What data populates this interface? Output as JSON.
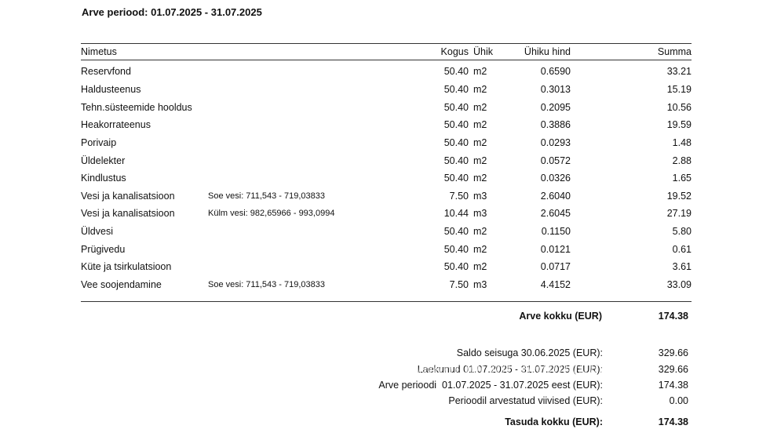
{
  "page": {
    "title": "Arve periood: 01.07.2025 - 31.07.2025"
  },
  "table": {
    "columns": {
      "name": "Nimetus",
      "qty": "Kogus",
      "unit": "Ühik",
      "unit_price": "Ühiku hind",
      "sum": "Summa"
    },
    "rows": [
      {
        "name": "Reservfond",
        "note": "",
        "qty": "50.40",
        "unit": "m2",
        "unit_price": "0.6590",
        "sum": "33.21"
      },
      {
        "name": "Haldusteenus",
        "note": "",
        "qty": "50.40",
        "unit": "m2",
        "unit_price": "0.3013",
        "sum": "15.19"
      },
      {
        "name": "Tehn.süsteemide hooldus",
        "note": "",
        "qty": "50.40",
        "unit": "m2",
        "unit_price": "0.2095",
        "sum": "10.56"
      },
      {
        "name": "Heakorrateenus",
        "note": "",
        "qty": "50.40",
        "unit": "m2",
        "unit_price": "0.3886",
        "sum": "19.59"
      },
      {
        "name": "Porivaip",
        "note": "",
        "qty": "50.40",
        "unit": "m2",
        "unit_price": "0.0293",
        "sum": "1.48"
      },
      {
        "name": "Üldelekter",
        "note": "",
        "qty": "50.40",
        "unit": "m2",
        "unit_price": "0.0572",
        "sum": "2.88"
      },
      {
        "name": "Kindlustus",
        "note": "",
        "qty": "50.40",
        "unit": "m2",
        "unit_price": "0.0326",
        "sum": "1.65"
      },
      {
        "name": "Vesi ja kanalisatsioon",
        "note": "Soe vesi: 711,543 - 719,03833",
        "qty": "7.50",
        "unit": "m3",
        "unit_price": "2.6040",
        "sum": "19.52"
      },
      {
        "name": "Vesi ja kanalisatsioon",
        "note": "Külm vesi: 982,65966 - 993,0994",
        "qty": "10.44",
        "unit": "m3",
        "unit_price": "2.6045",
        "sum": "27.19"
      },
      {
        "name": "Üldvesi",
        "note": "",
        "qty": "50.40",
        "unit": "m2",
        "unit_price": "0.1150",
        "sum": "5.80"
      },
      {
        "name": "Prügivedu",
        "note": "",
        "qty": "50.40",
        "unit": "m2",
        "unit_price": "0.0121",
        "sum": "0.61"
      },
      {
        "name": "Küte ja tsirkulatsioon",
        "note": "",
        "qty": "50.40",
        "unit": "m2",
        "unit_price": "0.0717",
        "sum": "3.61"
      },
      {
        "name": "Vee soojendamine",
        "note": "Soe vesi: 711,543 - 719,03833",
        "qty": "7.50",
        "unit": "m3",
        "unit_price": "4.4152",
        "sum": "33.09"
      }
    ],
    "total": {
      "label": "Arve kokku (EUR)",
      "value": "174.38"
    }
  },
  "summary": {
    "rows": [
      {
        "label": "Saldo seisuga 30.06.2025 (EUR):",
        "value": "329.66",
        "glitched": false
      },
      {
        "label": "Laekunud 01.07.2025 - 31.07.2025 (EUR):",
        "value": "329.66",
        "glitched": true
      },
      {
        "label": "Arve perioodi  01.07.2025 - 31.07.2025 eest (EUR):",
        "value": "174.38",
        "glitched": false
      },
      {
        "label": "Perioodil arvestatud viivised (EUR):",
        "value": "0.00",
        "glitched": false
      }
    ],
    "total": {
      "label": "Tasuda kokku (EUR):",
      "value": "174.38"
    }
  }
}
